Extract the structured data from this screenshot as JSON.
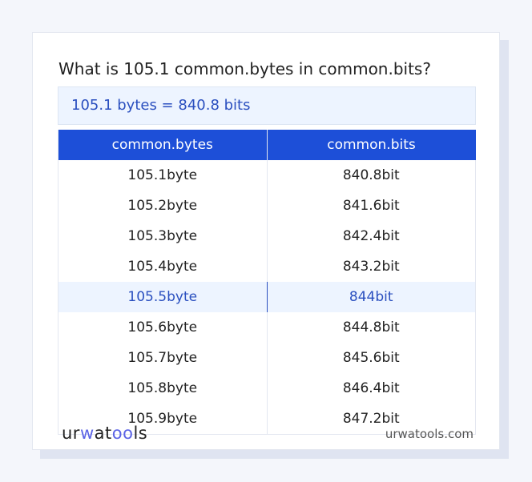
{
  "title": "What is 105.1 common.bytes in common.bits?",
  "result": "105.1 bytes = 840.8 bits",
  "columns": [
    "common.bytes",
    "common.bits"
  ],
  "rows": [
    [
      "105.1byte",
      "840.8bit"
    ],
    [
      "105.2byte",
      "841.6bit"
    ],
    [
      "105.3byte",
      "842.4bit"
    ],
    [
      "105.4byte",
      "843.2bit"
    ],
    [
      "105.5byte",
      "844bit"
    ],
    [
      "105.6byte",
      "844.8bit"
    ],
    [
      "105.7byte",
      "845.6bit"
    ],
    [
      "105.8byte",
      "846.4bit"
    ],
    [
      "105.9byte",
      "847.2bit"
    ]
  ],
  "highlight_row": 4,
  "logo": {
    "a": "ur",
    "b": "w",
    "c": "at",
    "d": "oo",
    "e": "ls"
  },
  "site": "urwatools.com",
  "colors": {
    "accent": "#1d4fd8",
    "highlight": "#edf4ff"
  }
}
